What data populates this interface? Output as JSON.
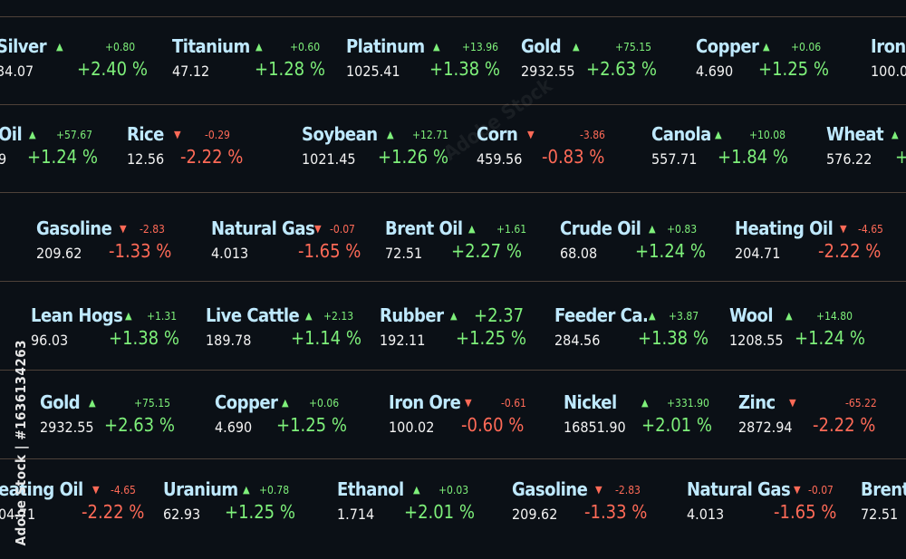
{
  "colors": {
    "background": "#0b1016",
    "name": "#bfe9ff",
    "up": "#7ef07a",
    "down": "#ff6a57",
    "price": "#f2f2f2",
    "separator": "#5a4a40"
  },
  "watermark": {
    "side_text": "Adobe Stock | #1636134263",
    "overlay_text": "Adobe Stock"
  },
  "rows": [
    {
      "items": [
        {
          "name": "Silver",
          "arrow": "▲",
          "dir": "up",
          "change": "+0.80",
          "price": "34.07",
          "pct": "+2.40 %"
        },
        {
          "name": "Titanium",
          "arrow": "▲",
          "dir": "up",
          "change": "+0.60",
          "price": "47.12",
          "pct": "+1.28 %"
        },
        {
          "name": "Platinum",
          "arrow": "▲",
          "dir": "up",
          "change": "+13.96",
          "price": "1025.41",
          "pct": "+1.38 %"
        },
        {
          "name": "Gold",
          "arrow": "▲",
          "dir": "up",
          "change": "+75.15",
          "price": "2932.55",
          "pct": "+2.63 %"
        },
        {
          "name": "Copper",
          "arrow": "▲",
          "dir": "up",
          "change": "+0.06",
          "price": "4.690",
          "pct": "+1.25 %"
        },
        {
          "name": "Iron",
          "arrow": "",
          "dir": "up",
          "change": "",
          "price": "100.0",
          "pct": ""
        }
      ]
    },
    {
      "items": [
        {
          "name": "Oil",
          "arrow": "▲",
          "dir": "up",
          "change": "+57.67",
          "price": "9",
          "pct": "+1.24 %"
        },
        {
          "name": "Rice",
          "arrow": "▼",
          "dir": "down",
          "change": "-0.29",
          "price": "12.56",
          "pct": "-2.22 %"
        },
        {
          "name": "Soybean",
          "arrow": "▲",
          "dir": "up",
          "change": "+12.71",
          "price": "1021.45",
          "pct": "+1.26 %"
        },
        {
          "name": "Corn",
          "arrow": "▼",
          "dir": "down",
          "change": "-3.86",
          "price": "459.56",
          "pct": "-0.83 %"
        },
        {
          "name": "Canola",
          "arrow": "▲",
          "dir": "up",
          "change": "+10.08",
          "price": "557.71",
          "pct": "+1.84 %"
        },
        {
          "name": "Wheat",
          "arrow": "▲",
          "dir": "up",
          "change": "",
          "price": "576.22",
          "pct": "+"
        }
      ]
    },
    {
      "items": [
        {
          "name": "Gasoline",
          "arrow": "▼",
          "dir": "down",
          "change": "-2.83",
          "price": "209.62",
          "pct": "-1.33 %"
        },
        {
          "name": "Natural Gas",
          "arrow": "▼",
          "dir": "down",
          "change": "-0.07",
          "price": "4.013",
          "pct": "-1.65 %"
        },
        {
          "name": "Brent Oil",
          "arrow": "▲",
          "dir": "up",
          "change": "+1.61",
          "price": "72.51",
          "pct": "+2.27 %"
        },
        {
          "name": "Crude Oil",
          "arrow": "▲",
          "dir": "up",
          "change": "+0.83",
          "price": "68.08",
          "pct": "+1.24 %"
        },
        {
          "name": "Heating Oil",
          "arrow": "▼",
          "dir": "down",
          "change": "-4.65",
          "price": "204.71",
          "pct": "-2.22 %"
        }
      ]
    },
    {
      "items": [
        {
          "name": "Lean Hogs",
          "arrow": "▲",
          "dir": "up",
          "change": "+1.31",
          "price": "96.03",
          "pct": "+1.38 %"
        },
        {
          "name": "Live Cattle",
          "arrow": "▲",
          "dir": "up",
          "change": "+2.13",
          "price": "189.78",
          "pct": "+1.14 %"
        },
        {
          "name": "Rubber",
          "arrow": "▲",
          "dir": "up",
          "change": "+2.37",
          "price": "192.11",
          "pct": "+1.25 %"
        },
        {
          "name": "Feeder Ca.",
          "arrow": "▲",
          "dir": "up",
          "change": "+3.87",
          "price": "284.56",
          "pct": "+1.38 %"
        },
        {
          "name": "Wool",
          "arrow": "▲",
          "dir": "up",
          "change": "+14.80",
          "price": "1208.55",
          "pct": "+1.24 %"
        }
      ]
    },
    {
      "items": [
        {
          "name": "Gold",
          "arrow": "▲",
          "dir": "up",
          "change": "+75.15",
          "price": "2932.55",
          "pct": "+2.63 %"
        },
        {
          "name": "Copper",
          "arrow": "▲",
          "dir": "up",
          "change": "+0.06",
          "price": "4.690",
          "pct": "+1.25 %"
        },
        {
          "name": "Iron Ore",
          "arrow": "▼",
          "dir": "down",
          "change": "-0.61",
          "price": "100.02",
          "pct": "-0.60 %"
        },
        {
          "name": "Nickel",
          "arrow": "▲",
          "dir": "up",
          "change": "+331.90",
          "price": "16851.90",
          "pct": "+2.01 %"
        },
        {
          "name": "Zinc",
          "arrow": "▼",
          "dir": "down",
          "change": "-65.22",
          "price": "2872.94",
          "pct": "-2.22 %"
        }
      ]
    },
    {
      "items": [
        {
          "name": "eating Oil",
          "arrow": "▼",
          "dir": "down",
          "change": "-4.65",
          "price": "04.71",
          "pct": "-2.22 %"
        },
        {
          "name": "Uranium",
          "arrow": "▲",
          "dir": "up",
          "change": "+0.78",
          "price": "62.93",
          "pct": "+1.25 %"
        },
        {
          "name": "Ethanol",
          "arrow": "▲",
          "dir": "up",
          "change": "+0.03",
          "price": "1.714",
          "pct": "+2.01 %"
        },
        {
          "name": "Gasoline",
          "arrow": "▼",
          "dir": "down",
          "change": "-2.83",
          "price": "209.62",
          "pct": "-1.33 %"
        },
        {
          "name": "Natural Gas",
          "arrow": "▼",
          "dir": "down",
          "change": "-0.07",
          "price": "4.013",
          "pct": "-1.65 %"
        },
        {
          "name": "Brent",
          "arrow": "",
          "dir": "up",
          "change": "",
          "price": "72.51",
          "pct": ""
        }
      ]
    }
  ]
}
